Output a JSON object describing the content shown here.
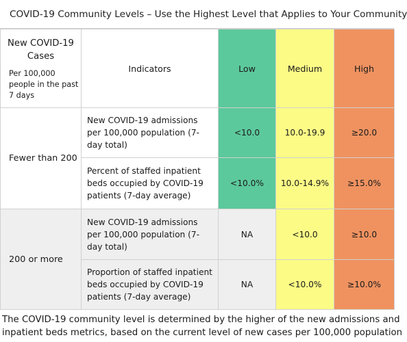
{
  "title": "COVID-19 Community Levels – Use the Highest Level that Applies to Your Community",
  "header": {
    "cases_label": "New COVID-19 Cases",
    "cases_sub": "Per 100,000 people in the past 7 days",
    "indicators": "Indicators",
    "low": "Low",
    "medium": "Medium",
    "high": "High"
  },
  "groups": [
    {
      "label": "Fewer than 200",
      "rows": [
        {
          "indicator": "New COVID-19 admissions per 100,000 population (7-day total)",
          "low": "<10.0",
          "medium": "10.0-19.9",
          "high": "≥20.0"
        },
        {
          "indicator": "Percent of staffed inpatient beds occupied by COVID-19 patients (7-day average)",
          "low": "<10.0%",
          "medium": "10.0-14.9%",
          "high": "≥15.0%"
        }
      ]
    },
    {
      "label": "200 or more",
      "rows": [
        {
          "indicator": "New COVID-19 admissions per 100,000 population (7-day total)",
          "low": "NA",
          "medium": "<10.0",
          "high": "≥10.0"
        },
        {
          "indicator": "Proportion of staffed inpatient beds occupied by COVID-19 patients (7-day average)",
          "low": "NA",
          "medium": "<10.0%",
          "high": "≥10.0%"
        }
      ]
    }
  ],
  "footer": {
    "line1": "The COVID-19 community level is determined by the higher of the new admissions and",
    "line2": "inpatient beds metrics, based on the current level of new cases per 100,000 population"
  },
  "colors": {
    "low": "#5cc99c",
    "medium": "#fbfb86",
    "high": "#ef9260",
    "gray": "#efefef"
  }
}
